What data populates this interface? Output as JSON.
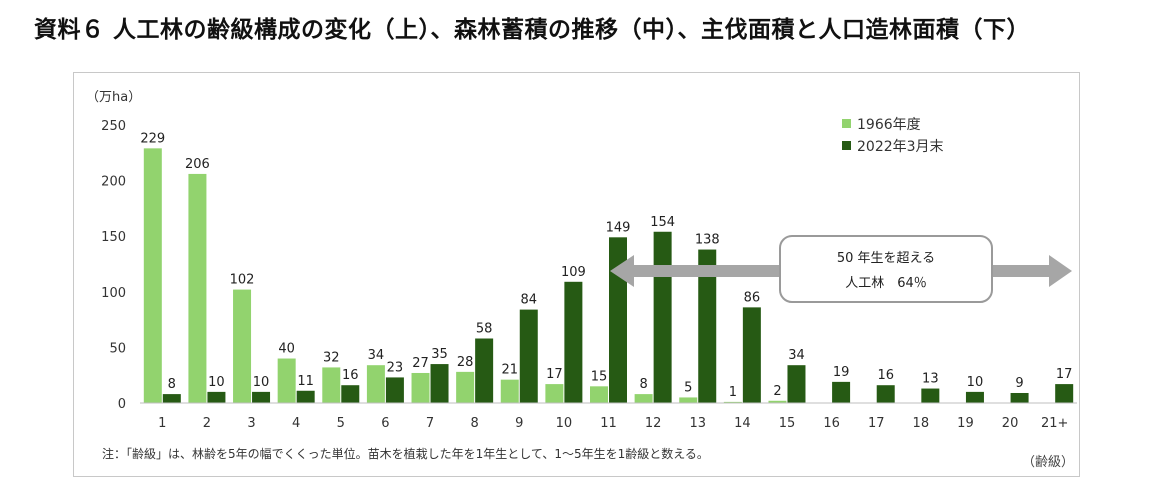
{
  "title": "資料６ 人工林の齢級構成の変化（上）、森林蓄積の推移（中）、主伐面積と人口造林面積（下）",
  "chart_data": {
    "type": "bar",
    "ylabel": "（万ha）",
    "xlabel": "（齢級）",
    "ylim": [
      0,
      250
    ],
    "yticks": [
      0,
      50,
      100,
      150,
      200,
      250
    ],
    "categories": [
      "1",
      "2",
      "3",
      "4",
      "5",
      "6",
      "7",
      "8",
      "9",
      "10",
      "11",
      "12",
      "13",
      "14",
      "15",
      "16",
      "17",
      "18",
      "19",
      "20",
      "21+"
    ],
    "series": [
      {
        "name": "1966年度",
        "color": "#92d36e",
        "values": [
          229,
          206,
          102,
          40,
          32,
          34,
          27,
          28,
          21,
          17,
          15,
          8,
          5,
          1,
          2,
          null,
          null,
          null,
          null,
          null,
          null
        ]
      },
      {
        "name": "2022年3月末",
        "color": "#265a14",
        "values": [
          8,
          10,
          10,
          11,
          16,
          23,
          35,
          58,
          84,
          109,
          149,
          154,
          138,
          86,
          34,
          19,
          16,
          13,
          10,
          9,
          17
        ]
      }
    ],
    "legend_position": "top-right",
    "grid": false,
    "annotation": {
      "line1": "50 年生を超える",
      "line2": "人工林　64％",
      "arrow_color": "#a6a6a6"
    },
    "note": "注：「齢級」は、林齢を5年の幅でくくった単位。苗木を植栽した年を1年生として、1～5年生を1齢級と数える。"
  }
}
